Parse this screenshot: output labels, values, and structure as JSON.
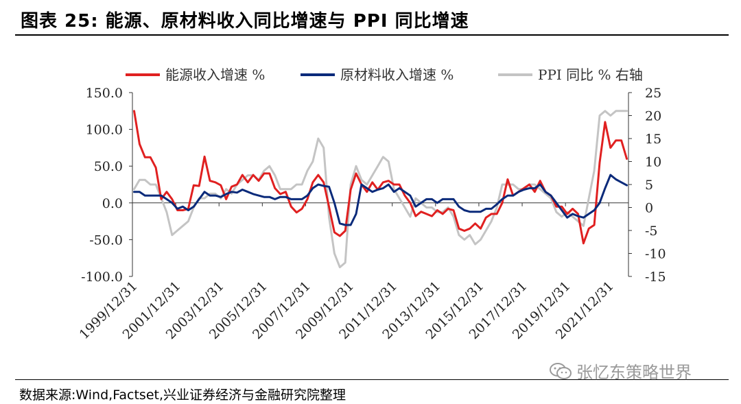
{
  "figure": {
    "title": "图表 25:  能源、原材料收入同比增速与 PPI 同比增速",
    "source": "数据来源:Wind,Factset,兴业证券经济与金融研究院整理",
    "watermark": "张忆东策略世界",
    "watermark_icon": "wechat-icon"
  },
  "chart_data": {
    "type": "line",
    "title": "",
    "xlabel": "",
    "ylabel_left": "",
    "ylabel_right": "",
    "ylim_left": [
      -100,
      150
    ],
    "ylim_right": [
      -15,
      25
    ],
    "xlim": [
      1999.92,
      2022.83
    ],
    "left_ticks": [
      "150.0",
      "100.0",
      "50.0",
      "0.0",
      "-50.0",
      "-100.0"
    ],
    "left_tick_values": [
      150,
      100,
      50,
      0,
      -50,
      -100
    ],
    "right_ticks": [
      "25",
      "20",
      "15",
      "10",
      "5",
      "0",
      "-5",
      "-10",
      "-15"
    ],
    "right_tick_values": [
      25,
      20,
      15,
      10,
      5,
      0,
      -5,
      -10,
      -15
    ],
    "x_tick_labels": [
      "1999/12/31",
      "2001/12/31",
      "2003/12/31",
      "2005/12/31",
      "2007/12/31",
      "2009/12/31",
      "2011/12/31",
      "2013/12/31",
      "2015/12/31",
      "2017/12/31",
      "2019/12/31",
      "2021/12/31"
    ],
    "x_tick_values": [
      1999.92,
      2001.92,
      2003.92,
      2005.92,
      2007.92,
      2009.92,
      2011.92,
      2013.92,
      2015.92,
      2017.92,
      2019.92,
      2021.92
    ],
    "legend_position": "top",
    "series": [
      {
        "name": "能源收入增速 %",
        "axis": "left",
        "color": "#e02020",
        "x": [
          2000.0,
          2000.25,
          2000.5,
          2000.75,
          2001.0,
          2001.25,
          2001.5,
          2001.75,
          2002.0,
          2002.25,
          2002.5,
          2002.75,
          2003.0,
          2003.25,
          2003.5,
          2003.75,
          2004.0,
          2004.25,
          2004.5,
          2004.75,
          2005.0,
          2005.25,
          2005.5,
          2005.75,
          2006.0,
          2006.25,
          2006.5,
          2006.75,
          2007.0,
          2007.25,
          2007.5,
          2007.75,
          2008.0,
          2008.25,
          2008.5,
          2008.75,
          2009.0,
          2009.25,
          2009.5,
          2009.75,
          2010.0,
          2010.25,
          2010.5,
          2010.75,
          2011.0,
          2011.25,
          2011.5,
          2011.75,
          2012.0,
          2012.25,
          2012.5,
          2012.75,
          2013.0,
          2013.25,
          2013.5,
          2013.75,
          2014.0,
          2014.25,
          2014.5,
          2014.75,
          2015.0,
          2015.25,
          2015.5,
          2015.75,
          2016.0,
          2016.25,
          2016.5,
          2016.75,
          2017.0,
          2017.25,
          2017.5,
          2017.75,
          2018.0,
          2018.25,
          2018.5,
          2018.75,
          2019.0,
          2019.25,
          2019.5,
          2019.75,
          2020.0,
          2020.25,
          2020.5,
          2020.75,
          2021.0,
          2021.25,
          2021.5,
          2021.75,
          2022.0,
          2022.25,
          2022.5,
          2022.75
        ],
        "values": [
          125,
          80,
          62,
          62,
          48,
          5,
          15,
          5,
          -10,
          -10,
          -8,
          24,
          23,
          63,
          30,
          28,
          24,
          5,
          22,
          25,
          38,
          28,
          38,
          30,
          40,
          40,
          20,
          12,
          15,
          -5,
          -13,
          -8,
          5,
          28,
          38,
          28,
          -5,
          -40,
          -45,
          -38,
          18,
          40,
          25,
          15,
          28,
          18,
          28,
          30,
          25,
          25,
          10,
          0,
          -18,
          -12,
          -15,
          -18,
          -10,
          -15,
          -8,
          -10,
          -35,
          -38,
          -35,
          -28,
          -35,
          -20,
          -15,
          -15,
          0,
          32,
          10,
          15,
          20,
          25,
          15,
          30,
          15,
          10,
          -5,
          -5,
          -15,
          -8,
          -15,
          -55,
          -35,
          -30,
          55,
          110,
          75,
          85,
          85,
          60
        ]
      },
      {
        "name": "原材料收入增速 %",
        "axis": "left",
        "color": "#0a2a7a",
        "x": [
          2000.0,
          2000.25,
          2000.5,
          2000.75,
          2001.0,
          2001.25,
          2001.5,
          2001.75,
          2002.0,
          2002.25,
          2002.5,
          2002.75,
          2003.0,
          2003.25,
          2003.5,
          2003.75,
          2004.0,
          2004.25,
          2004.5,
          2004.75,
          2005.0,
          2005.25,
          2005.5,
          2005.75,
          2006.0,
          2006.25,
          2006.5,
          2006.75,
          2007.0,
          2007.25,
          2007.5,
          2007.75,
          2008.0,
          2008.25,
          2008.5,
          2008.75,
          2009.0,
          2009.25,
          2009.5,
          2009.75,
          2010.0,
          2010.25,
          2010.5,
          2010.75,
          2011.0,
          2011.25,
          2011.5,
          2011.75,
          2012.0,
          2012.25,
          2012.5,
          2012.75,
          2013.0,
          2013.25,
          2013.5,
          2013.75,
          2014.0,
          2014.25,
          2014.5,
          2014.75,
          2015.0,
          2015.25,
          2015.5,
          2015.75,
          2016.0,
          2016.25,
          2016.5,
          2016.75,
          2017.0,
          2017.25,
          2017.5,
          2017.75,
          2018.0,
          2018.25,
          2018.5,
          2018.75,
          2019.0,
          2019.25,
          2019.5,
          2019.75,
          2020.0,
          2020.25,
          2020.5,
          2020.75,
          2021.0,
          2021.25,
          2021.5,
          2021.75,
          2022.0,
          2022.25,
          2022.5,
          2022.75
        ],
        "values": [
          15,
          15,
          10,
          10,
          10,
          10,
          5,
          0,
          -8,
          -5,
          -10,
          -5,
          5,
          15,
          10,
          10,
          8,
          12,
          15,
          14,
          18,
          15,
          12,
          10,
          8,
          8,
          5,
          8,
          8,
          5,
          5,
          5,
          10,
          20,
          25,
          23,
          22,
          0,
          -28,
          -30,
          -30,
          -15,
          25,
          20,
          15,
          18,
          20,
          25,
          15,
          20,
          15,
          10,
          -5,
          0,
          5,
          5,
          0,
          5,
          5,
          5,
          -5,
          -10,
          -12,
          -12,
          -12,
          -8,
          -8,
          -2,
          5,
          10,
          10,
          15,
          18,
          20,
          20,
          25,
          15,
          10,
          0,
          -10,
          -20,
          -15,
          -18,
          -20,
          -15,
          -10,
          0,
          20,
          38,
          32,
          28,
          24
        ]
      },
      {
        "name": "PPI 同比 % 右轴",
        "axis": "right",
        "color": "#c4c4c4",
        "x": [
          2000.0,
          2000.25,
          2000.5,
          2000.75,
          2001.0,
          2001.25,
          2001.5,
          2001.75,
          2002.0,
          2002.25,
          2002.5,
          2002.75,
          2003.0,
          2003.25,
          2003.5,
          2003.75,
          2004.0,
          2004.25,
          2004.5,
          2004.75,
          2005.0,
          2005.25,
          2005.5,
          2005.75,
          2006.0,
          2006.25,
          2006.5,
          2006.75,
          2007.0,
          2007.25,
          2007.5,
          2007.75,
          2008.0,
          2008.25,
          2008.5,
          2008.75,
          2009.0,
          2009.25,
          2009.5,
          2009.75,
          2010.0,
          2010.25,
          2010.5,
          2010.75,
          2011.0,
          2011.25,
          2011.5,
          2011.75,
          2012.0,
          2012.25,
          2012.5,
          2012.75,
          2013.0,
          2013.25,
          2013.5,
          2013.75,
          2014.0,
          2014.25,
          2014.5,
          2014.75,
          2015.0,
          2015.25,
          2015.5,
          2015.75,
          2016.0,
          2016.25,
          2016.5,
          2016.75,
          2017.0,
          2017.25,
          2017.5,
          2017.75,
          2018.0,
          2018.25,
          2018.5,
          2018.75,
          2019.0,
          2019.25,
          2019.5,
          2019.75,
          2020.0,
          2020.25,
          2020.5,
          2020.75,
          2021.0,
          2021.25,
          2021.5,
          2021.75,
          2022.0,
          2022.25,
          2022.5,
          2022.75
        ],
        "values": [
          4,
          6,
          6,
          5,
          5,
          2,
          -1,
          -6,
          -5,
          -4,
          -3,
          0,
          2,
          2,
          3,
          3,
          2,
          4,
          3,
          5,
          6,
          7,
          7,
          6,
          8,
          9,
          7,
          4,
          4,
          4,
          5,
          5,
          8,
          10,
          15,
          13,
          -2,
          -10,
          -13,
          -12,
          5,
          9,
          6,
          5,
          7,
          9,
          11,
          10,
          4,
          2,
          0,
          -2,
          2,
          1,
          0,
          0,
          -1,
          -1,
          0,
          -2,
          -6,
          -7,
          -6,
          -8,
          -7,
          -5,
          -3,
          0,
          5,
          5,
          5,
          4,
          4,
          5,
          5,
          4,
          3,
          2,
          -1,
          -2,
          -1,
          -2,
          -3,
          -4,
          2,
          8,
          20,
          21,
          20,
          21,
          21,
          21
        ]
      }
    ]
  }
}
